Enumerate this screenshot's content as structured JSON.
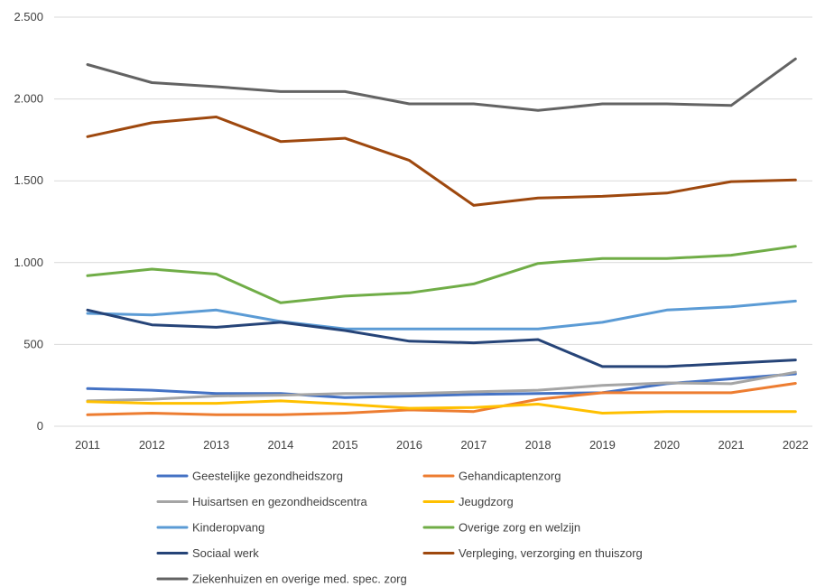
{
  "chart_data": {
    "type": "line",
    "title": "",
    "xlabel": "",
    "ylabel": "",
    "x": [
      "2011",
      "2012",
      "2013",
      "2014",
      "2015",
      "2016",
      "2017",
      "2018",
      "2019",
      "2020",
      "2021",
      "2022"
    ],
    "ylim": [
      0,
      2500
    ],
    "yticks": [
      0,
      500,
      1000,
      1500,
      2000,
      2500
    ],
    "ytick_labels": [
      "0",
      "500",
      "1.000",
      "1.500",
      "2.000",
      "2.500"
    ],
    "grid": "horizontal",
    "legend_position": "bottom",
    "series": [
      {
        "name": "Geestelijke gezondheidszorg",
        "color": "#4472C4",
        "values": [
          230,
          220,
          200,
          200,
          175,
          185,
          195,
          200,
          205,
          260,
          290,
          320
        ]
      },
      {
        "name": "Gehandicaptenzorg",
        "color": "#ED7D31",
        "values": [
          70,
          80,
          70,
          70,
          80,
          100,
          90,
          165,
          205,
          205,
          205,
          262
        ]
      },
      {
        "name": "Huisartsen en gezondheidscentra",
        "color": "#A5A5A5",
        "values": [
          155,
          165,
          185,
          190,
          200,
          200,
          210,
          220,
          250,
          265,
          260,
          330
        ]
      },
      {
        "name": "Jeugdzorg",
        "color": "#FFC000",
        "values": [
          150,
          140,
          140,
          155,
          135,
          110,
          115,
          135,
          80,
          90,
          90,
          90
        ]
      },
      {
        "name": "Kinderopvang",
        "color": "#5B9BD5",
        "values": [
          690,
          680,
          710,
          640,
          595,
          595,
          595,
          595,
          635,
          710,
          730,
          765
        ]
      },
      {
        "name": "Overige zorg en welzijn",
        "color": "#70AD47",
        "values": [
          920,
          960,
          930,
          755,
          795,
          815,
          870,
          995,
          1025,
          1025,
          1045,
          1100
        ]
      },
      {
        "name": "Sociaal werk",
        "color": "#264478",
        "values": [
          710,
          620,
          605,
          635,
          585,
          520,
          510,
          530,
          365,
          365,
          385,
          405
        ]
      },
      {
        "name": "Verpleging, verzorging en thuiszorg",
        "color": "#9E480E",
        "values": [
          1770,
          1855,
          1890,
          1740,
          1760,
          1625,
          1350,
          1395,
          1405,
          1425,
          1495,
          1505
        ]
      },
      {
        "name": "Ziekenhuizen en overige med. spec. zorg",
        "color": "#636363",
        "values": [
          2210,
          2100,
          2075,
          2045,
          2045,
          1970,
          1970,
          1930,
          1970,
          1970,
          1960,
          2245
        ]
      }
    ]
  }
}
